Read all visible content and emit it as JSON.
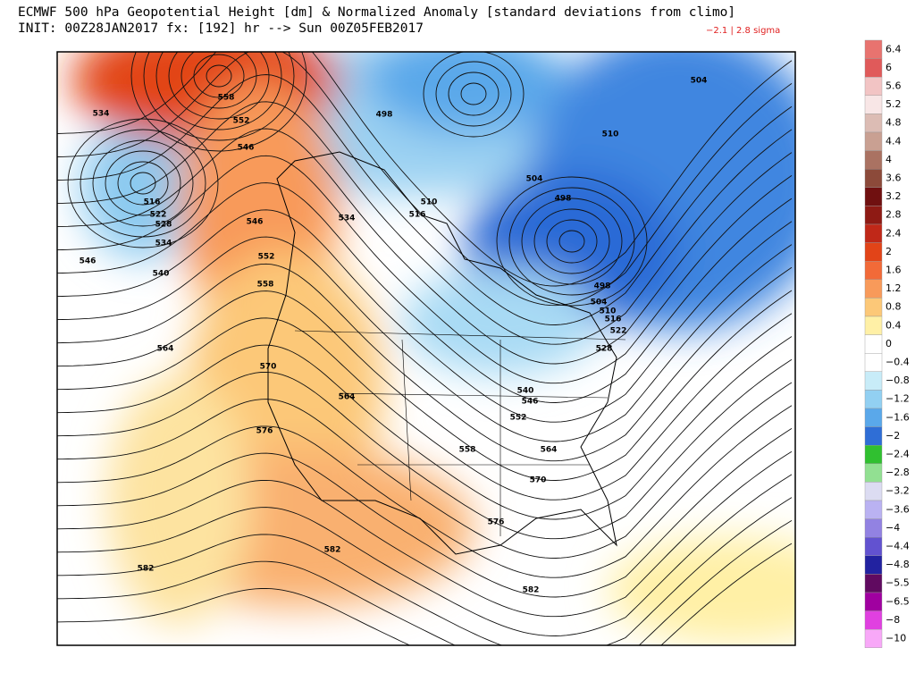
{
  "header": {
    "title": "ECMWF 500 hPa Geopotential Height [dm] & Normalized Anomaly [standard deviations from climo]",
    "subtitle": "INIT: 00Z28JAN2017 fx: [192] hr --> Sun 00Z05FEB2017",
    "range_note": "−2.1 | 2.8 sigma"
  },
  "colorbar": {
    "labels": [
      "6.4",
      "6",
      "5.6",
      "5.2",
      "4.8",
      "4.4",
      "4",
      "3.6",
      "3.2",
      "2.8",
      "2.4",
      "2",
      "1.6",
      "1.2",
      "0.8",
      "0.4",
      "0",
      "−0.4",
      "−0.8",
      "−1.2",
      "−1.6",
      "−2",
      "−2.4",
      "−2.8",
      "−3.2",
      "−3.6",
      "−4",
      "−4.4",
      "−4.8",
      "−5.5",
      "−6.5",
      "−8",
      "−10"
    ],
    "colors": [
      "#e8736f",
      "#e05a5a",
      "#f2c4c4",
      "#f8e6e6",
      "#dcbcb4",
      "#c9a092",
      "#aa7262",
      "#8c4a3a",
      "#701010",
      "#8e1a14",
      "#c02818",
      "#e24418",
      "#f26a38",
      "#f89a5a",
      "#fcc878",
      "#fff0a6",
      "#ffffff",
      "#ffffff",
      "#c8ecf8",
      "#92d0f2",
      "#5aa8ea",
      "#2f6ed6",
      "#30c030",
      "#92e092",
      "#dcdcf2",
      "#bab2f2",
      "#9282e2",
      "#6252d0",
      "#2222a0",
      "#600a60",
      "#a000a0",
      "#e040e0",
      "#f8a8f8"
    ]
  },
  "map": {
    "contour_labels": [
      "534",
      "558",
      "552",
      "546",
      "516",
      "522",
      "528",
      "534",
      "546",
      "540",
      "546",
      "552",
      "558",
      "564",
      "570",
      "576",
      "582",
      "582",
      "564",
      "534",
      "516",
      "510",
      "498",
      "504",
      "510",
      "498",
      "498",
      "504",
      "510",
      "516",
      "522",
      "528",
      "540",
      "546",
      "552",
      "558",
      "564",
      "570",
      "576",
      "582",
      "504"
    ]
  }
}
